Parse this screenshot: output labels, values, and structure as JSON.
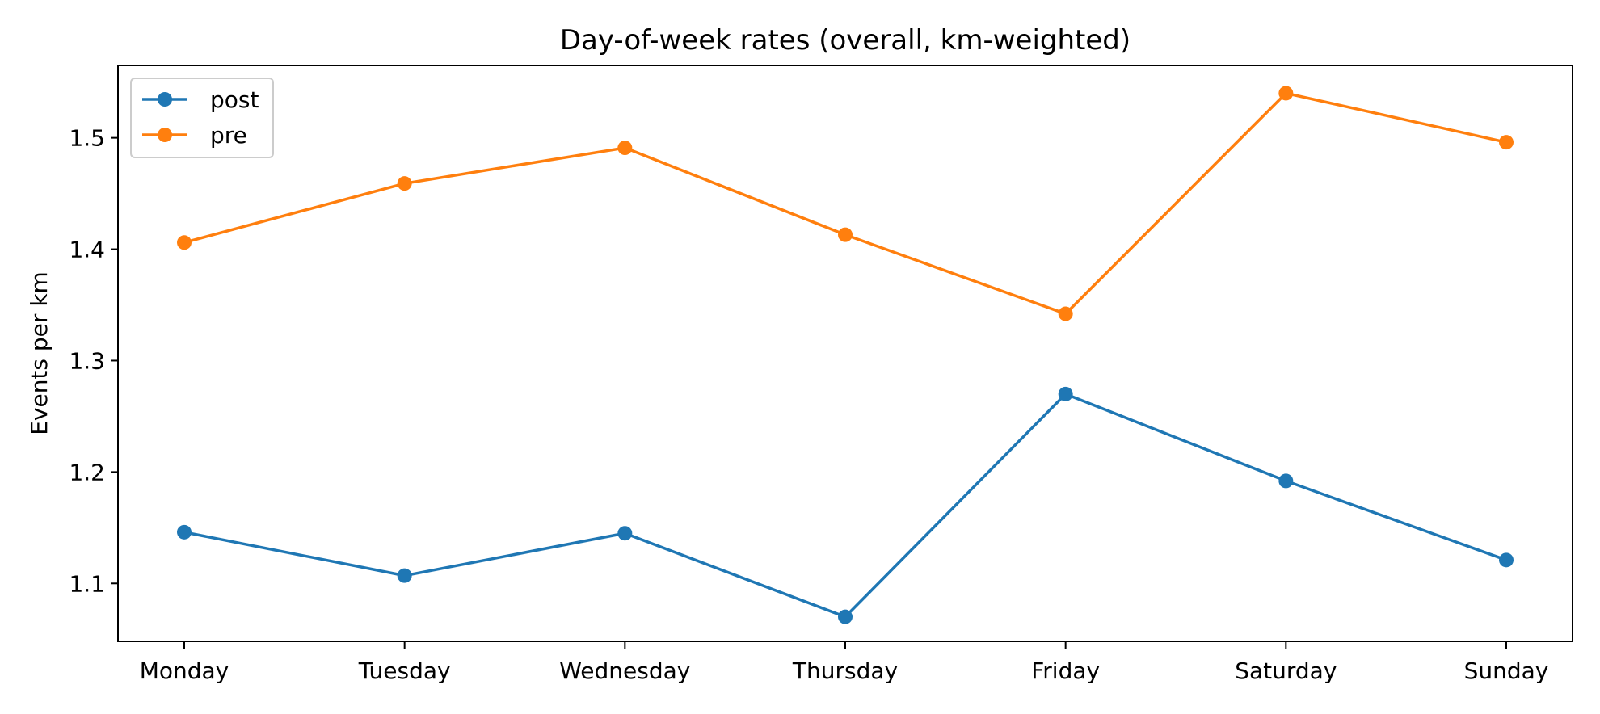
{
  "chart_data": {
    "type": "line",
    "title": "Day-of-week rates (overall, km-weighted)",
    "xlabel": "",
    "ylabel": "Events per km",
    "categories": [
      "Monday",
      "Tuesday",
      "Wednesday",
      "Thursday",
      "Friday",
      "Saturday",
      "Sunday"
    ],
    "series": [
      {
        "name": "post",
        "color": "#1f77b4",
        "marker": "circle",
        "values": [
          1.146,
          1.107,
          1.145,
          1.07,
          1.27,
          1.192,
          1.121
        ]
      },
      {
        "name": "pre",
        "color": "#ff7f0e",
        "marker": "circle",
        "values": [
          1.406,
          1.459,
          1.491,
          1.413,
          1.342,
          1.54,
          1.496
        ]
      }
    ],
    "ylim": [
      1.048,
      1.565
    ],
    "yticks": [
      1.1,
      1.2,
      1.3,
      1.4,
      1.5
    ],
    "grid": false,
    "legend_position": "upper-left"
  }
}
